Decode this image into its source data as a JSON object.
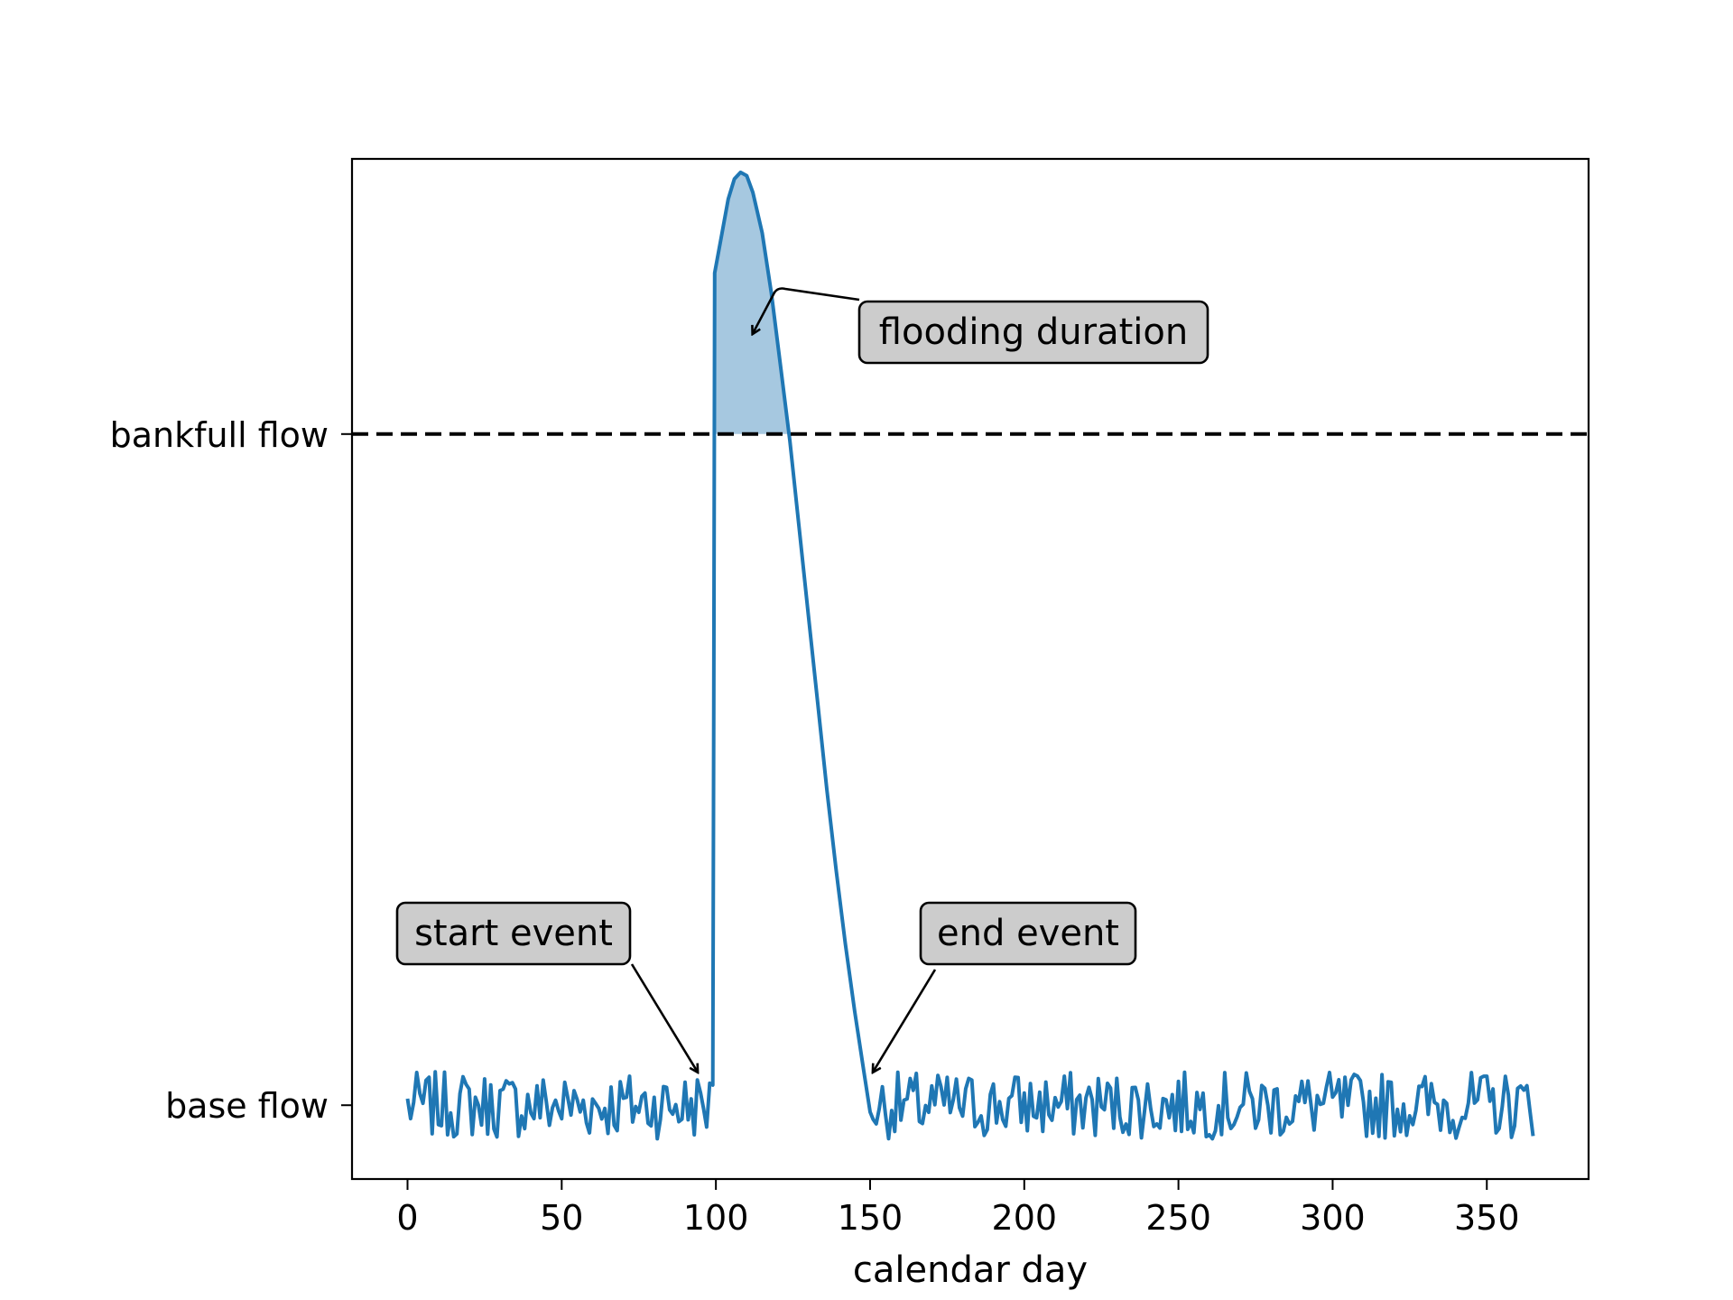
{
  "chart_data": {
    "type": "line",
    "xlabel": "calendar day",
    "xlim": [
      -18,
      383
    ],
    "x_ticks": [
      0,
      50,
      100,
      150,
      200,
      250,
      300,
      350
    ],
    "ylim": [
      -0.11,
      1.41
    ],
    "y_tick_labels": [
      {
        "value": 0,
        "label": "base flow"
      },
      {
        "value": 1,
        "label": "bankfull flow"
      }
    ],
    "bankfull_level": 1,
    "base_level": 0,
    "series_color": "#1f77b4",
    "fill_color": "#a6c8e0",
    "flood_profile": [
      [
        99,
        0.03
      ],
      [
        99.3,
        0.6
      ],
      [
        99.6,
        1.24
      ],
      [
        102,
        1.3
      ],
      [
        104,
        1.35
      ],
      [
        106,
        1.38
      ],
      [
        108,
        1.39
      ],
      [
        110,
        1.385
      ],
      [
        112,
        1.36
      ],
      [
        115,
        1.3
      ],
      [
        118,
        1.21
      ],
      [
        121,
        1.1
      ],
      [
        124,
        0.99
      ],
      [
        127,
        0.86
      ],
      [
        130,
        0.73
      ],
      [
        133,
        0.6
      ],
      [
        136,
        0.47
      ],
      [
        139,
        0.35
      ],
      [
        142,
        0.24
      ],
      [
        145,
        0.14
      ],
      [
        148,
        0.05
      ],
      [
        150,
        -0.01
      ]
    ],
    "annotations": [
      {
        "text": "start event",
        "target": [
          94,
          0.05
        ]
      },
      {
        "text": "end event",
        "target": [
          151,
          0.05
        ]
      },
      {
        "text": "flooding duration",
        "target": [
          112,
          1.15
        ]
      }
    ],
    "grid": false
  }
}
